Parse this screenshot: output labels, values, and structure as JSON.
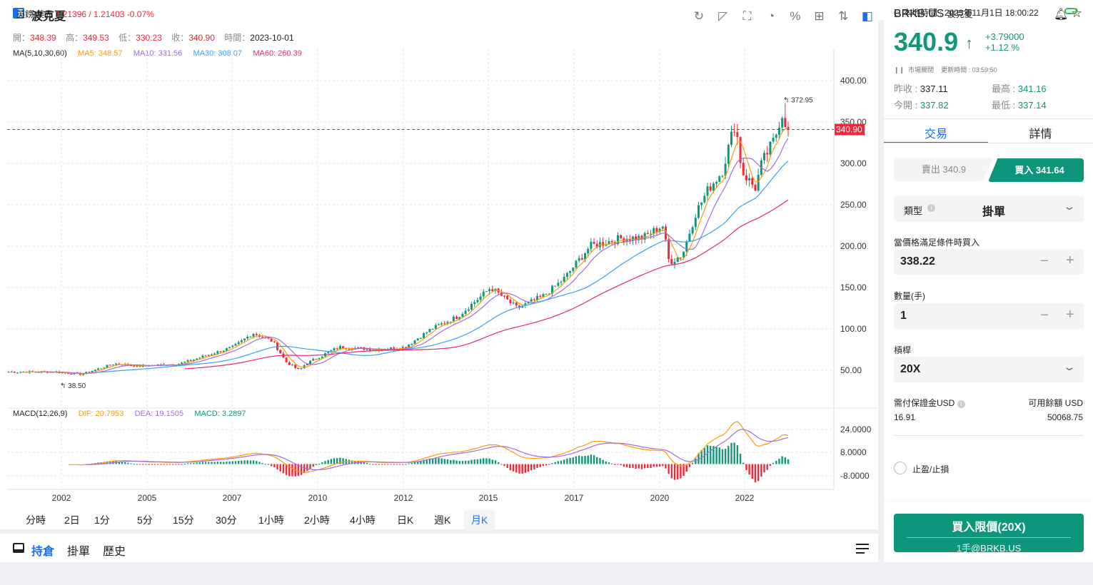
{
  "header": {
    "title": "波克夏",
    "ohlc": [
      {
        "k": "開：",
        "v": "348.39"
      },
      {
        "k": "高：",
        "v": "349.53"
      },
      {
        "k": "低：",
        "v": "330.23"
      },
      {
        "k": "收：",
        "v": "340.90"
      }
    ],
    "time_label": "時間：",
    "time": "2023-10-01",
    "ma_label": "MA(5,10,30,60)",
    "ma5": "MA5: 348.57",
    "ma10": "MA10: 331.56",
    "ma30": "MA30: 308.07",
    "ma60": "MA60: 260.39"
  },
  "toolbar": [
    "refresh-icon",
    "draw-icon",
    "indicator-icon",
    "pie-chart-icon",
    "percent-icon",
    "grid-icon",
    "sort-icon",
    "panel-toggle-icon"
  ],
  "macd": {
    "label": "MACD(12,26,9)",
    "dif": "DIF: 20.7953",
    "dea": "DEA: 19.1505",
    "macd": "MACD: 3.2897"
  },
  "timeframes": [
    "分時",
    "2日",
    "1分",
    "5分",
    "15分",
    "30分",
    "1小時",
    "2小時",
    "4小時",
    "日K",
    "週K",
    "月K"
  ],
  "active_timeframe": "月K",
  "positions_tabs": [
    "持倉",
    "掛單",
    "歷史"
  ],
  "colors": {
    "up": "#12977a",
    "down": "#f0283c",
    "ma5": "#ff9a0e",
    "ma10": "#a26ed8",
    "ma30": "#3aa0f5",
    "ma60": "#e8286f",
    "accent": "#1a6ee8"
  },
  "chart_data": {
    "type": "candlestick",
    "title": "波克夏 月K",
    "ylim": [
      20,
      430
    ],
    "y_ticks": [
      "400.00",
      "350.00",
      "300.00",
      "250.00",
      "200.00",
      "150.00",
      "100.00",
      "50.00"
    ],
    "x_ticks": [
      "2002",
      "2005",
      "2007",
      "2010",
      "2012",
      "2015",
      "2017",
      "2020",
      "2022"
    ],
    "last_price": "340.90",
    "max_label": "372.95",
    "min_label": "38.50",
    "macd_ticks": [
      "24.0000",
      "8.0000",
      "-8.0000"
    ],
    "close_anchors": [
      [
        0,
        48
      ],
      [
        7,
        48
      ],
      [
        11,
        45
      ],
      [
        16,
        58
      ],
      [
        20,
        55
      ],
      [
        26,
        58
      ],
      [
        30,
        68
      ],
      [
        34,
        78
      ],
      [
        37,
        95
      ],
      [
        40,
        85
      ],
      [
        42,
        60
      ],
      [
        44,
        50
      ],
      [
        45,
        58
      ],
      [
        48,
        70
      ],
      [
        50,
        78
      ],
      [
        56,
        75
      ],
      [
        60,
        78
      ],
      [
        64,
        100
      ],
      [
        68,
        115
      ],
      [
        73,
        150
      ],
      [
        77,
        125
      ],
      [
        81,
        140
      ],
      [
        84,
        160
      ],
      [
        88,
        200
      ],
      [
        93,
        210
      ],
      [
        96,
        210
      ],
      [
        99,
        225
      ],
      [
        100,
        180
      ],
      [
        102,
        190
      ],
      [
        104,
        240
      ],
      [
        106,
        270
      ],
      [
        108,
        290
      ],
      [
        110,
        350
      ],
      [
        111,
        290
      ],
      [
        113,
        270
      ],
      [
        114,
        300
      ],
      [
        116,
        330
      ],
      [
        117,
        362
      ],
      [
        118,
        341
      ]
    ]
  },
  "quote": {
    "symbol": "BRKB.US",
    "name": "波克夏",
    "price": "340.9",
    "change": "+3.79000",
    "change_pct": "+1.12 %",
    "status": "市場關閉",
    "update": "更新時間 : 03:59:50",
    "prev_close_k": "昨收 : ",
    "prev_close": "337.11",
    "high_k": "最高 : ",
    "high": "341.16",
    "open_k": "今開 : ",
    "open": "337.82",
    "low_k": "最低 : ",
    "low": "337.14"
  },
  "tabs": [
    "交易",
    "詳情"
  ],
  "trade": {
    "sell": "賣出 340.9",
    "buy": "買入 341.64",
    "type_label": "類型",
    "type_value": "掛單",
    "cond_label": "當價格滿足條件時買入",
    "price": "338.22",
    "qty_label": "數量(手)",
    "qty": "1",
    "lev_label": "槓桿",
    "lev": "20X",
    "margin_label": "需付保證金USD",
    "margin": "16.91",
    "avail_label": "可用餘額 USD",
    "avail": "50068.75",
    "tp_sl": "止盈/止損",
    "submit": "買入限價(20X)",
    "submit_sub": "1手@BRKB.US"
  },
  "footer": {
    "pair": "英鎊/美元",
    "pair_value": "1.21396 / 1.21403 -0.07%",
    "local_time": "本地時間 : 2023年11月1日 18:00:22"
  }
}
